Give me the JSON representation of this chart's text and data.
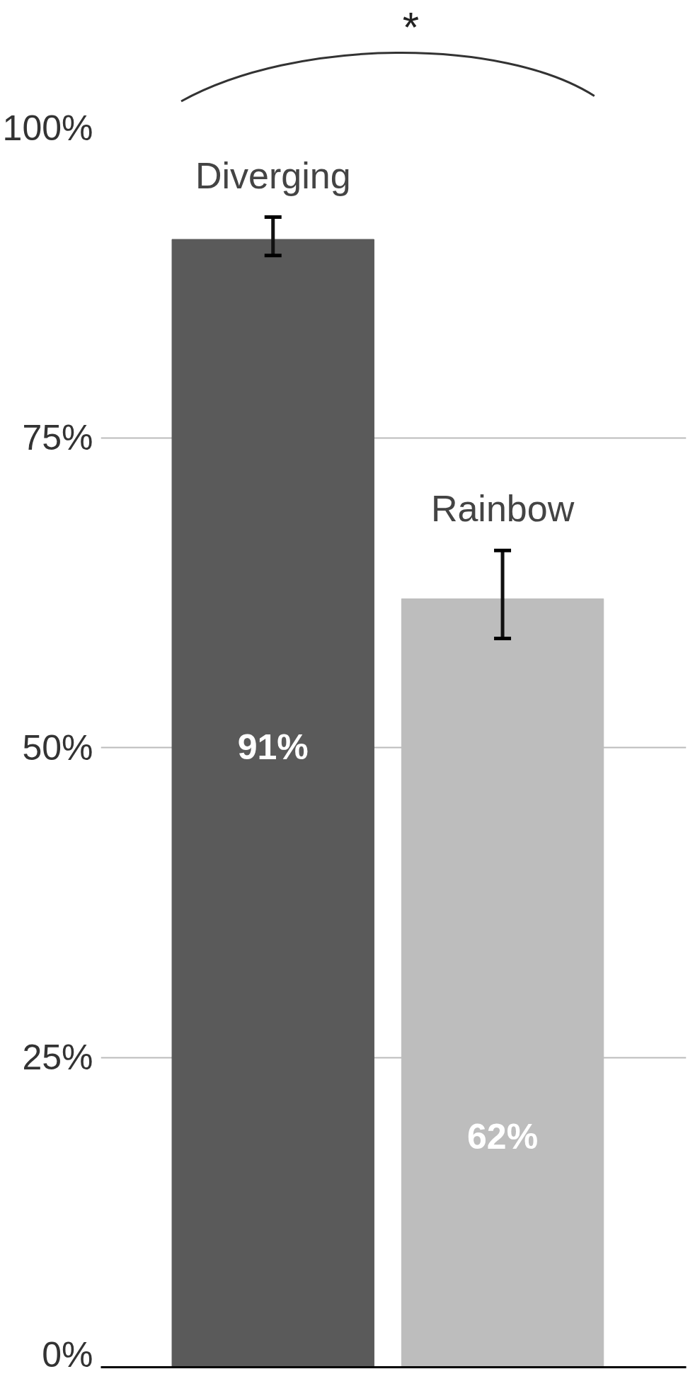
{
  "chart_data": {
    "type": "bar",
    "categories": [
      "Diverging",
      "Rainbow"
    ],
    "values": [
      91,
      62
    ],
    "colors": [
      "#5a5a5a",
      "#bdbdbd"
    ],
    "errors": [
      [
        89.7,
        92.8
      ],
      [
        58.8,
        65.9
      ]
    ],
    "value_labels": [
      "91%",
      "62%"
    ],
    "ylim": [
      0,
      100
    ],
    "yticks": [
      {
        "value": 0,
        "label": "0%"
      },
      {
        "value": 25,
        "label": "25%"
      },
      {
        "value": 50,
        "label": "50%"
      },
      {
        "value": 75,
        "label": "75%"
      },
      {
        "value": 100,
        "label": "100%"
      }
    ],
    "grid": "y",
    "tick_labels": "y",
    "annotations": [
      "*"
    ]
  }
}
